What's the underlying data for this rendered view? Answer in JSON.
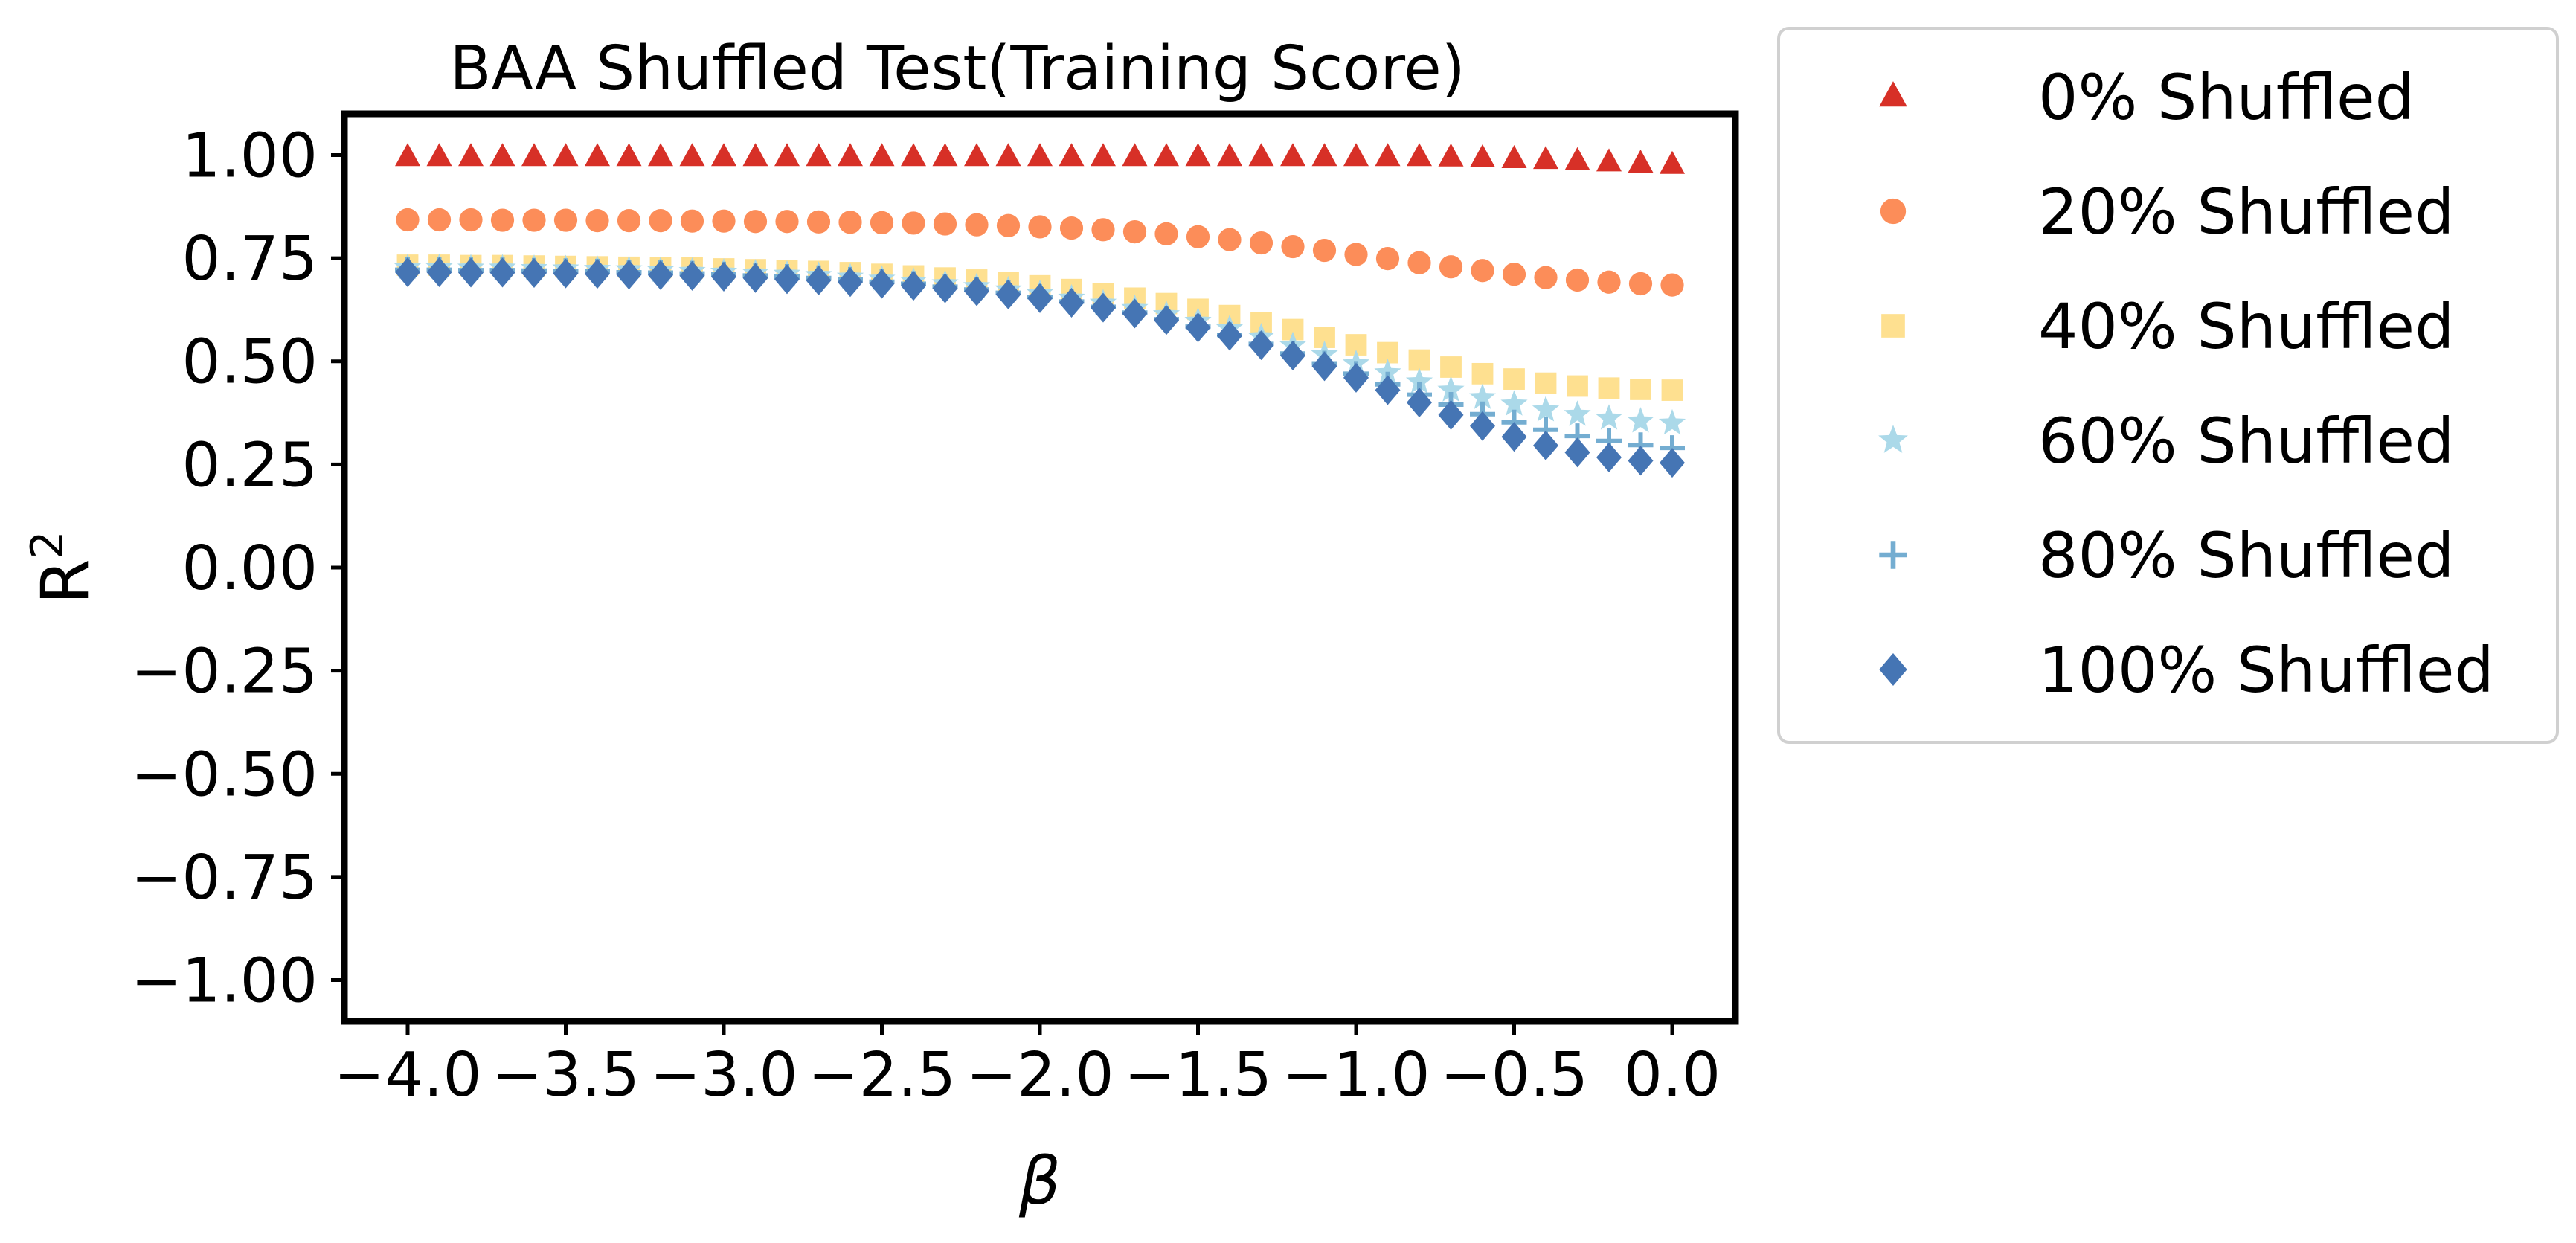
{
  "chart_data": {
    "type": "scatter",
    "title": "BAA Shuffled Test(Training Score)",
    "xlabel": "β",
    "ylabel": "R",
    "ylabel_superscript": "2",
    "xlim": [
      -4.2,
      0.2
    ],
    "ylim": [
      -1.1,
      1.1
    ],
    "xticks": [
      -4.0,
      -3.5,
      -3.0,
      -2.5,
      -2.0,
      -1.5,
      -1.0,
      -0.5,
      0.0
    ],
    "xtick_labels": [
      "−4.0",
      "−3.5",
      "−3.0",
      "−2.5",
      "−2.0",
      "−1.5",
      "−1.0",
      "−0.5",
      "0.0"
    ],
    "yticks": [
      1.0,
      0.75,
      0.5,
      0.25,
      0.0,
      -0.25,
      -0.5,
      -0.75,
      -1.0
    ],
    "ytick_labels": [
      "1.00",
      "0.75",
      "0.50",
      "0.25",
      "0.00",
      "−0.25",
      "−0.50",
      "−0.75",
      "−1.00"
    ],
    "grid": false,
    "legend_position": "outside-right",
    "x": [
      -4.0,
      -3.9,
      -3.8,
      -3.7,
      -3.6,
      -3.5,
      -3.4,
      -3.3,
      -3.2,
      -3.1,
      -3.0,
      -2.9,
      -2.8,
      -2.7,
      -2.6,
      -2.5,
      -2.4,
      -2.3,
      -2.2,
      -2.1,
      -2.0,
      -1.9,
      -1.8,
      -1.7,
      -1.6,
      -1.5,
      -1.4,
      -1.3,
      -1.2,
      -1.1,
      -1.0,
      -0.9,
      -0.8,
      -0.7,
      -0.6,
      -0.5,
      -0.4,
      -0.3,
      -0.2,
      -0.1,
      0.0
    ],
    "series": [
      {
        "name": "0% Shuffled",
        "marker": "triangle",
        "color": "#d73027",
        "values": [
          0.995,
          0.995,
          0.995,
          0.995,
          0.995,
          0.995,
          0.995,
          0.995,
          0.995,
          0.995,
          0.995,
          0.995,
          0.995,
          0.995,
          0.995,
          0.995,
          0.995,
          0.995,
          0.995,
          0.995,
          0.995,
          0.995,
          0.995,
          0.995,
          0.995,
          0.995,
          0.995,
          0.995,
          0.995,
          0.995,
          0.995,
          0.995,
          0.995,
          0.994,
          0.992,
          0.99,
          0.988,
          0.985,
          0.982,
          0.979,
          0.976
        ]
      },
      {
        "name": "20% Shuffled",
        "marker": "circle",
        "color": "#fc8d59",
        "values": [
          0.843,
          0.843,
          0.843,
          0.842,
          0.842,
          0.842,
          0.841,
          0.841,
          0.841,
          0.84,
          0.84,
          0.839,
          0.839,
          0.838,
          0.837,
          0.836,
          0.835,
          0.833,
          0.831,
          0.829,
          0.826,
          0.823,
          0.819,
          0.814,
          0.809,
          0.802,
          0.795,
          0.787,
          0.778,
          0.769,
          0.759,
          0.749,
          0.739,
          0.729,
          0.72,
          0.711,
          0.703,
          0.697,
          0.692,
          0.688,
          0.685
        ]
      },
      {
        "name": "40% Shuffled",
        "marker": "square",
        "color": "#fee090",
        "values": [
          0.733,
          0.733,
          0.732,
          0.732,
          0.731,
          0.73,
          0.729,
          0.728,
          0.727,
          0.726,
          0.724,
          0.722,
          0.72,
          0.718,
          0.715,
          0.711,
          0.707,
          0.702,
          0.697,
          0.69,
          0.683,
          0.674,
          0.664,
          0.653,
          0.64,
          0.626,
          0.611,
          0.594,
          0.577,
          0.558,
          0.54,
          0.521,
          0.503,
          0.486,
          0.47,
          0.457,
          0.447,
          0.44,
          0.435,
          0.432,
          0.43
        ]
      },
      {
        "name": "60% Shuffled",
        "marker": "star",
        "color": "#abd9e9",
        "values": [
          0.727,
          0.727,
          0.726,
          0.726,
          0.725,
          0.724,
          0.723,
          0.722,
          0.72,
          0.718,
          0.716,
          0.714,
          0.711,
          0.708,
          0.704,
          0.699,
          0.694,
          0.688,
          0.681,
          0.673,
          0.664,
          0.653,
          0.641,
          0.628,
          0.613,
          0.597,
          0.579,
          0.559,
          0.538,
          0.516,
          0.494,
          0.472,
          0.45,
          0.43,
          0.412,
          0.396,
          0.382,
          0.371,
          0.362,
          0.355,
          0.35
        ]
      },
      {
        "name": "80% Shuffled",
        "marker": "plus",
        "color": "#74add1",
        "values": [
          0.722,
          0.722,
          0.721,
          0.721,
          0.72,
          0.719,
          0.718,
          0.716,
          0.715,
          0.713,
          0.711,
          0.708,
          0.705,
          0.702,
          0.698,
          0.693,
          0.688,
          0.681,
          0.674,
          0.666,
          0.656,
          0.645,
          0.632,
          0.618,
          0.602,
          0.584,
          0.564,
          0.542,
          0.519,
          0.495,
          0.47,
          0.444,
          0.419,
          0.395,
          0.372,
          0.352,
          0.334,
          0.319,
          0.307,
          0.297,
          0.29
        ]
      },
      {
        "name": "100% Shuffled",
        "marker": "diamond",
        "color": "#4575b4",
        "values": [
          0.716,
          0.716,
          0.715,
          0.715,
          0.714,
          0.713,
          0.712,
          0.71,
          0.709,
          0.707,
          0.705,
          0.702,
          0.699,
          0.696,
          0.692,
          0.688,
          0.683,
          0.677,
          0.67,
          0.662,
          0.653,
          0.642,
          0.63,
          0.616,
          0.6,
          0.582,
          0.562,
          0.539,
          0.514,
          0.488,
          0.46,
          0.43,
          0.4,
          0.37,
          0.343,
          0.317,
          0.296,
          0.279,
          0.267,
          0.259,
          0.254
        ]
      }
    ]
  }
}
